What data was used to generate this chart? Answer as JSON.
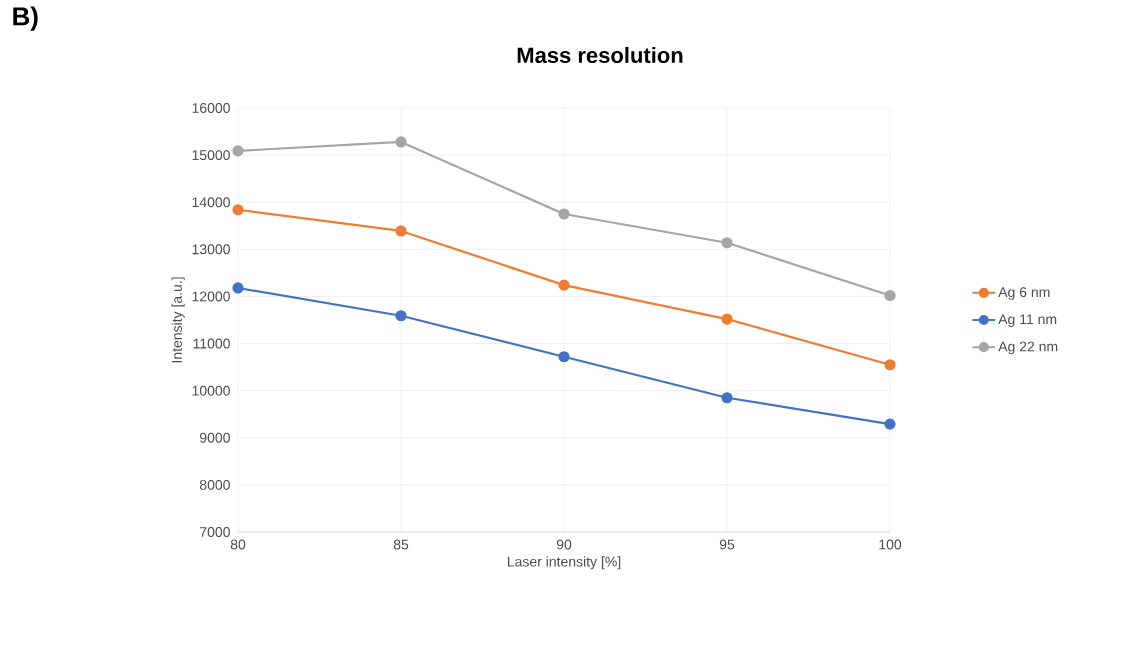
{
  "chart_data": {
    "type": "line",
    "title": "Mass resolution",
    "xlabel": "Laser intensity [%]",
    "ylabel": "Intensity [a.u.]",
    "annotations": [
      "B)"
    ],
    "x": [
      80,
      85,
      90,
      95,
      100
    ],
    "series": [
      {
        "name": "Ag 6 nm",
        "color": "#ed7d31",
        "values": [
          13840,
          13390,
          12240,
          11520,
          10550
        ]
      },
      {
        "name": "Ag 11 nm",
        "color": "#4472c4",
        "values": [
          12180,
          11590,
          10720,
          9850,
          9290
        ]
      },
      {
        "name": "Ag 22 nm",
        "color": "#a5a5a5",
        "values": [
          15090,
          15280,
          13750,
          13140,
          12020
        ]
      }
    ],
    "xlim": [
      80,
      100
    ],
    "xticks": [
      80,
      85,
      90,
      95,
      100
    ],
    "ylim": [
      7000,
      16000
    ],
    "yticks": [
      7000,
      8000,
      9000,
      10000,
      11000,
      12000,
      13000,
      14000,
      15000,
      16000
    ],
    "grid": true,
    "legend": "right",
    "marker": "circle",
    "line_style": "solid"
  }
}
